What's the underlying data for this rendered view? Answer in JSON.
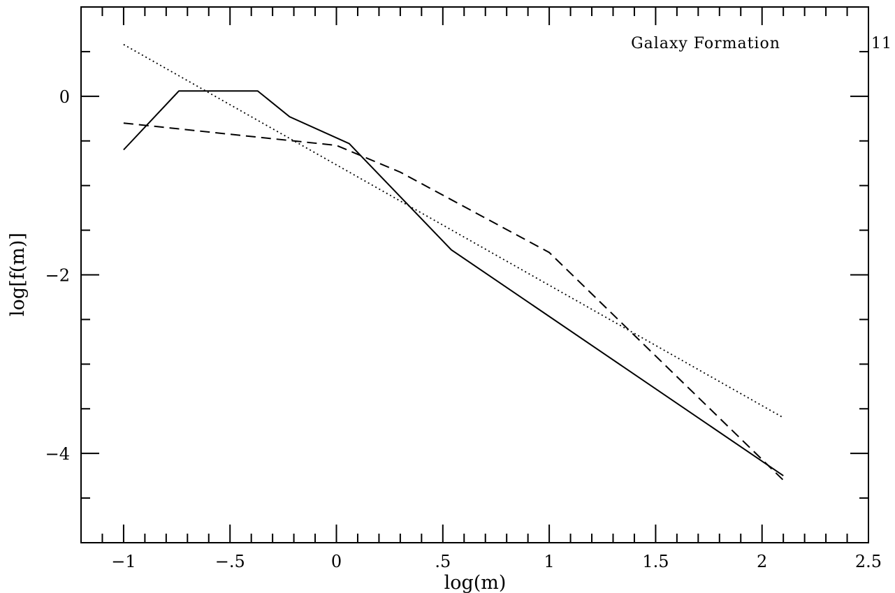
{
  "chart_data": {
    "type": "line",
    "title": "",
    "xlabel": "log(m)",
    "ylabel": "log[f(m)]",
    "xlim": [
      -1.2,
      2.5
    ],
    "ylim": [
      -5.0,
      1.0
    ],
    "x_ticks": [
      {
        "value": -1,
        "label": "−1"
      },
      {
        "value": -0.5,
        "label": "−.5"
      },
      {
        "value": 0,
        "label": "0"
      },
      {
        "value": 0.5,
        "label": ".5"
      },
      {
        "value": 1,
        "label": "1"
      },
      {
        "value": 1.5,
        "label": "1.5"
      },
      {
        "value": 2,
        "label": "2"
      },
      {
        "value": 2.5,
        "label": "2.5"
      }
    ],
    "y_ticks": [
      {
        "value": 0,
        "label": "0"
      },
      {
        "value": -2,
        "label": "−2"
      },
      {
        "value": -4,
        "label": "−4"
      }
    ],
    "x_minor_step": 0.1,
    "y_minor_step": 0.5,
    "grid": false,
    "legend": "none",
    "series": [
      {
        "style": "solid",
        "x": [
          -1.0,
          -0.74,
          -0.37,
          -0.22,
          0.06,
          0.54,
          2.1
        ],
        "y": [
          -0.6,
          0.06,
          0.06,
          -0.23,
          -0.53,
          -1.72,
          -4.25
        ]
      },
      {
        "style": "dashed",
        "x": [
          -1.0,
          -0.2,
          0.0,
          0.3,
          1.0,
          2.1
        ],
        "y": [
          -0.3,
          -0.5,
          -0.55,
          -0.85,
          -1.75,
          -4.3
        ]
      },
      {
        "style": "dotted",
        "x": [
          -1.0,
          2.1
        ],
        "y": [
          0.58,
          -3.6
        ]
      }
    ]
  },
  "annotations": {
    "header": "Galaxy Formation",
    "page_number": "11"
  }
}
